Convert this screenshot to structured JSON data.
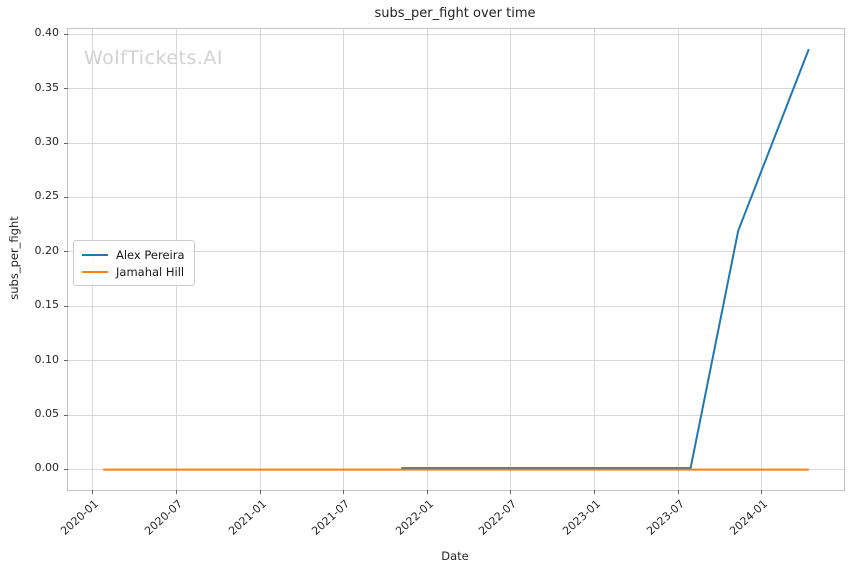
{
  "chart_data": {
    "type": "line",
    "title": "subs_per_fight over time",
    "xlabel": "Date",
    "ylabel": "subs_per_fight",
    "watermark": "WolfTickets.AI",
    "grid": true,
    "legend_position": "center-left",
    "x_tick_rotation": 42,
    "x_ticks": [
      "2020-01",
      "2020-07",
      "2021-01",
      "2021-07",
      "2022-01",
      "2022-07",
      "2023-01",
      "2023-07",
      "2024-01"
    ],
    "y_ticks": [
      "0.00",
      "0.05",
      "0.10",
      "0.15",
      "0.20",
      "0.25",
      "0.30",
      "0.35",
      "0.40"
    ],
    "xlim": [
      "2019-11-09",
      "2024-06-29"
    ],
    "ylim": [
      -0.0193,
      0.4043
    ],
    "series": [
      {
        "name": "Alex Pereira",
        "color": "#1f77b4",
        "points": [
          [
            "2021-11-06",
            0.0
          ],
          [
            "2023-07-29",
            0.0
          ],
          [
            "2023-11-11",
            0.218
          ],
          [
            "2024-04-13",
            0.385
          ]
        ]
      },
      {
        "name": "Jamahal Hill",
        "color": "#ff7f0e",
        "points": [
          [
            "2020-01-25",
            0.0
          ],
          [
            "2024-04-13",
            0.0
          ]
        ]
      }
    ],
    "grid_color": "#d8d8d8",
    "spine_color": "#c4c4c4",
    "tick_color": "#666666"
  }
}
